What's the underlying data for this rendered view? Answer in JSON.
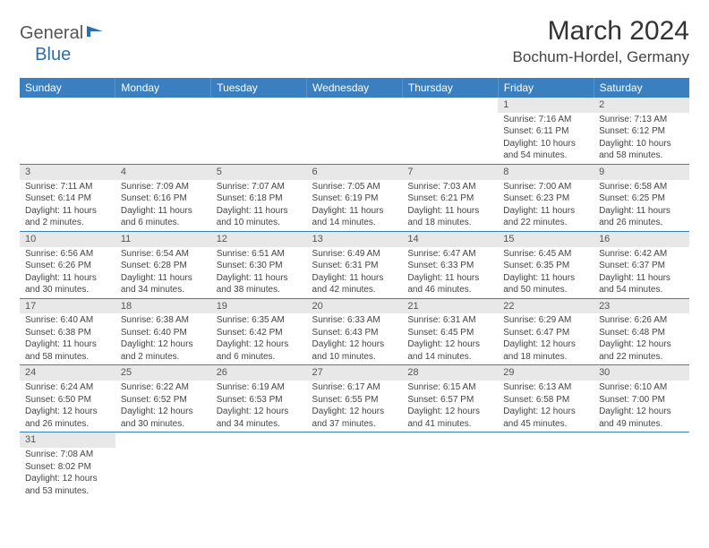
{
  "logo": {
    "general": "General",
    "blue": "Blue"
  },
  "title": "March 2024",
  "location": "Bochum-Hordel, Germany",
  "colors": {
    "header_bg": "#3a7fc0",
    "header_text": "#ffffff",
    "daynum_bg": "#e8e8e8",
    "row_border": "#3a7fc0",
    "logo_accent": "#2a6fb0"
  },
  "weekdays": [
    "Sunday",
    "Monday",
    "Tuesday",
    "Wednesday",
    "Thursday",
    "Friday",
    "Saturday"
  ],
  "weeks": [
    [
      null,
      null,
      null,
      null,
      null,
      {
        "n": "1",
        "sr": "Sunrise: 7:16 AM",
        "ss": "Sunset: 6:11 PM",
        "dl": "Daylight: 10 hours and 54 minutes."
      },
      {
        "n": "2",
        "sr": "Sunrise: 7:13 AM",
        "ss": "Sunset: 6:12 PM",
        "dl": "Daylight: 10 hours and 58 minutes."
      }
    ],
    [
      {
        "n": "3",
        "sr": "Sunrise: 7:11 AM",
        "ss": "Sunset: 6:14 PM",
        "dl": "Daylight: 11 hours and 2 minutes."
      },
      {
        "n": "4",
        "sr": "Sunrise: 7:09 AM",
        "ss": "Sunset: 6:16 PM",
        "dl": "Daylight: 11 hours and 6 minutes."
      },
      {
        "n": "5",
        "sr": "Sunrise: 7:07 AM",
        "ss": "Sunset: 6:18 PM",
        "dl": "Daylight: 11 hours and 10 minutes."
      },
      {
        "n": "6",
        "sr": "Sunrise: 7:05 AM",
        "ss": "Sunset: 6:19 PM",
        "dl": "Daylight: 11 hours and 14 minutes."
      },
      {
        "n": "7",
        "sr": "Sunrise: 7:03 AM",
        "ss": "Sunset: 6:21 PM",
        "dl": "Daylight: 11 hours and 18 minutes."
      },
      {
        "n": "8",
        "sr": "Sunrise: 7:00 AM",
        "ss": "Sunset: 6:23 PM",
        "dl": "Daylight: 11 hours and 22 minutes."
      },
      {
        "n": "9",
        "sr": "Sunrise: 6:58 AM",
        "ss": "Sunset: 6:25 PM",
        "dl": "Daylight: 11 hours and 26 minutes."
      }
    ],
    [
      {
        "n": "10",
        "sr": "Sunrise: 6:56 AM",
        "ss": "Sunset: 6:26 PM",
        "dl": "Daylight: 11 hours and 30 minutes."
      },
      {
        "n": "11",
        "sr": "Sunrise: 6:54 AM",
        "ss": "Sunset: 6:28 PM",
        "dl": "Daylight: 11 hours and 34 minutes."
      },
      {
        "n": "12",
        "sr": "Sunrise: 6:51 AM",
        "ss": "Sunset: 6:30 PM",
        "dl": "Daylight: 11 hours and 38 minutes."
      },
      {
        "n": "13",
        "sr": "Sunrise: 6:49 AM",
        "ss": "Sunset: 6:31 PM",
        "dl": "Daylight: 11 hours and 42 minutes."
      },
      {
        "n": "14",
        "sr": "Sunrise: 6:47 AM",
        "ss": "Sunset: 6:33 PM",
        "dl": "Daylight: 11 hours and 46 minutes."
      },
      {
        "n": "15",
        "sr": "Sunrise: 6:45 AM",
        "ss": "Sunset: 6:35 PM",
        "dl": "Daylight: 11 hours and 50 minutes."
      },
      {
        "n": "16",
        "sr": "Sunrise: 6:42 AM",
        "ss": "Sunset: 6:37 PM",
        "dl": "Daylight: 11 hours and 54 minutes."
      }
    ],
    [
      {
        "n": "17",
        "sr": "Sunrise: 6:40 AM",
        "ss": "Sunset: 6:38 PM",
        "dl": "Daylight: 11 hours and 58 minutes."
      },
      {
        "n": "18",
        "sr": "Sunrise: 6:38 AM",
        "ss": "Sunset: 6:40 PM",
        "dl": "Daylight: 12 hours and 2 minutes."
      },
      {
        "n": "19",
        "sr": "Sunrise: 6:35 AM",
        "ss": "Sunset: 6:42 PM",
        "dl": "Daylight: 12 hours and 6 minutes."
      },
      {
        "n": "20",
        "sr": "Sunrise: 6:33 AM",
        "ss": "Sunset: 6:43 PM",
        "dl": "Daylight: 12 hours and 10 minutes."
      },
      {
        "n": "21",
        "sr": "Sunrise: 6:31 AM",
        "ss": "Sunset: 6:45 PM",
        "dl": "Daylight: 12 hours and 14 minutes."
      },
      {
        "n": "22",
        "sr": "Sunrise: 6:29 AM",
        "ss": "Sunset: 6:47 PM",
        "dl": "Daylight: 12 hours and 18 minutes."
      },
      {
        "n": "23",
        "sr": "Sunrise: 6:26 AM",
        "ss": "Sunset: 6:48 PM",
        "dl": "Daylight: 12 hours and 22 minutes."
      }
    ],
    [
      {
        "n": "24",
        "sr": "Sunrise: 6:24 AM",
        "ss": "Sunset: 6:50 PM",
        "dl": "Daylight: 12 hours and 26 minutes."
      },
      {
        "n": "25",
        "sr": "Sunrise: 6:22 AM",
        "ss": "Sunset: 6:52 PM",
        "dl": "Daylight: 12 hours and 30 minutes."
      },
      {
        "n": "26",
        "sr": "Sunrise: 6:19 AM",
        "ss": "Sunset: 6:53 PM",
        "dl": "Daylight: 12 hours and 34 minutes."
      },
      {
        "n": "27",
        "sr": "Sunrise: 6:17 AM",
        "ss": "Sunset: 6:55 PM",
        "dl": "Daylight: 12 hours and 37 minutes."
      },
      {
        "n": "28",
        "sr": "Sunrise: 6:15 AM",
        "ss": "Sunset: 6:57 PM",
        "dl": "Daylight: 12 hours and 41 minutes."
      },
      {
        "n": "29",
        "sr": "Sunrise: 6:13 AM",
        "ss": "Sunset: 6:58 PM",
        "dl": "Daylight: 12 hours and 45 minutes."
      },
      {
        "n": "30",
        "sr": "Sunrise: 6:10 AM",
        "ss": "Sunset: 7:00 PM",
        "dl": "Daylight: 12 hours and 49 minutes."
      }
    ],
    [
      {
        "n": "31",
        "sr": "Sunrise: 7:08 AM",
        "ss": "Sunset: 8:02 PM",
        "dl": "Daylight: 12 hours and 53 minutes."
      },
      null,
      null,
      null,
      null,
      null,
      null
    ]
  ]
}
